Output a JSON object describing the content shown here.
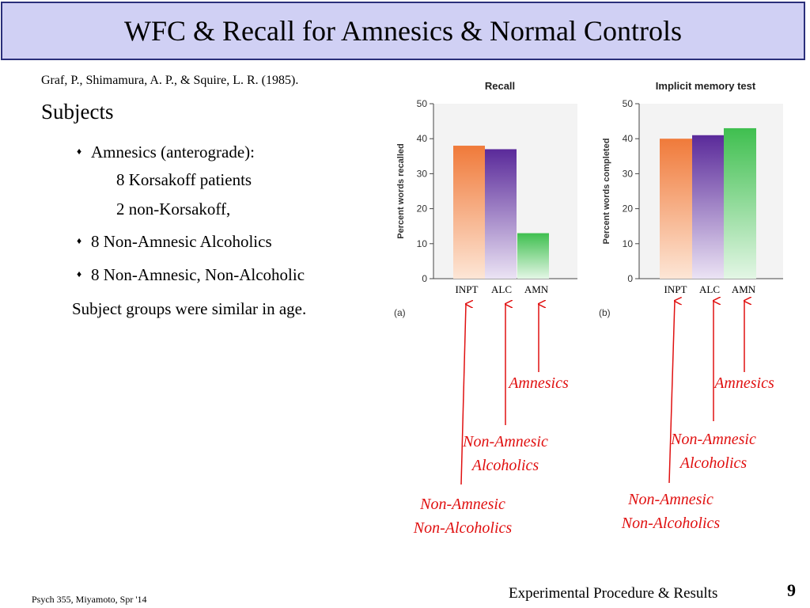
{
  "header": {
    "title": "WFC & Recall for Amnesics & Normal Controls"
  },
  "left": {
    "citation": "Graf, P., Shimamura, A. P., & Squire, L. R. (1985).",
    "heading": "Subjects",
    "amnesics": "Amnesics (anterograde):",
    "korsakoff": "8 Korsakoff patients",
    "non_korsakoff": "2 non-Korsakoff,",
    "alcoholics": "8 Non-Amnesic Alcoholics",
    "controls": "8 Non-Amnesic, Non-Alcoholic",
    "age_note": "Subject groups were similar in age."
  },
  "annotations": {
    "amnesics": "Amnesics",
    "na_alc_line1": "Non-Amnesic",
    "na_alc_line2": "Alcoholics",
    "na_nonalc_line1": "Non-Amnesic",
    "na_nonalc_line2": "Non-Alcoholics"
  },
  "colors": {
    "inpt": "#f07a3a",
    "alc": "#5a2a9a",
    "amn": "#3fbf4f",
    "arrow": "#e01010",
    "title_bg": "#d0d0f4",
    "title_border": "#2a2f7a"
  },
  "chart_data": [
    {
      "type": "bar",
      "title": "Recall",
      "panel_label": "(a)",
      "ylabel": "Percent words recalled",
      "categories": [
        "INPT",
        "ALC",
        "AMN"
      ],
      "values": [
        38,
        37,
        13
      ],
      "ylim": [
        0,
        50
      ],
      "yticks": [
        0,
        10,
        20,
        30,
        40,
        50
      ],
      "grid": false
    },
    {
      "type": "bar",
      "title": "Implicit memory test",
      "panel_label": "(b)",
      "ylabel": "Percent words completed",
      "categories": [
        "INPT",
        "ALC",
        "AMN"
      ],
      "values": [
        40,
        41,
        43
      ],
      "ylim": [
        0,
        50
      ],
      "yticks": [
        0,
        10,
        20,
        30,
        40,
        50
      ],
      "grid": false
    }
  ],
  "footer": {
    "left": "Psych 355, Miyamoto, Spr '14",
    "right": "Experimental Procedure & Results",
    "page": "9"
  }
}
